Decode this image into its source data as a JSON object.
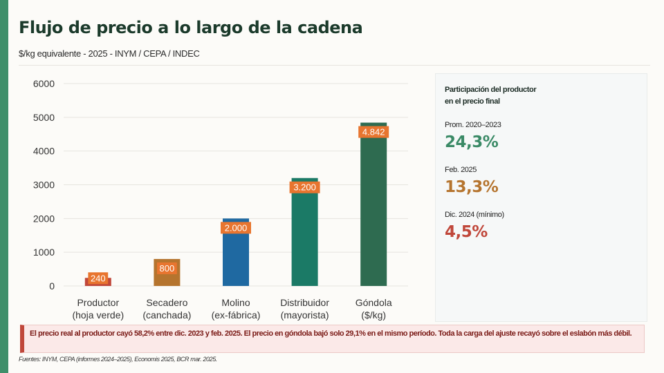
{
  "header": {
    "title": "Flujo de precio a lo largo de la cadena",
    "subtitle": "$/kg equivalente - 2025 - INYM / CEPA / INDEC"
  },
  "chart_data": {
    "type": "bar",
    "title": "",
    "xlabel": "",
    "ylabel": "",
    "ylim": [
      0,
      6000
    ],
    "yticks": [
      0,
      1000,
      2000,
      3000,
      4000,
      5000,
      6000
    ],
    "grid": true,
    "categories": [
      [
        "Productor",
        "(hoja verde)"
      ],
      [
        "Secadero",
        "(canchada)"
      ],
      [
        "Molino",
        "(ex-fábrica)"
      ],
      [
        "Distribuidor",
        "(mayorista)"
      ],
      [
        "Góndola",
        "($/kg)"
      ]
    ],
    "values": [
      240,
      800,
      2000,
      3200,
      4842
    ],
    "data_labels": [
      "240",
      "800",
      "2.000",
      "3.200",
      "4.842"
    ],
    "bar_colors": [
      "#c0473a",
      "#b5742e",
      "#1f69a1",
      "#1b7a66",
      "#2e6b50"
    ],
    "label_color": "#e8752f"
  },
  "side_panel": {
    "title_line1": "Participación  del productor",
    "title_line2": "en el precio final",
    "stats": [
      {
        "label": "Prom. 2020–2023",
        "value": "24,3%",
        "color": "#3a8a66"
      },
      {
        "label": "Feb. 2025",
        "value": "13,3%",
        "color": "#b5742e"
      },
      {
        "label": "Dic. 2024 (mínimo)",
        "value": "4,5%",
        "color": "#c0473a"
      }
    ]
  },
  "callout": {
    "text": "El precio real al productor cayó 58,2% entre dic. 2023 y feb. 2025. El precio en góndola bajó solo 29,1% en el mismo período. Toda la carga del ajuste recayó sobre el eslabón más débil."
  },
  "footnote": "Fuentes: INYM, CEPA (informes 2024–2025), Economis 2025, BCR mar. 2025."
}
